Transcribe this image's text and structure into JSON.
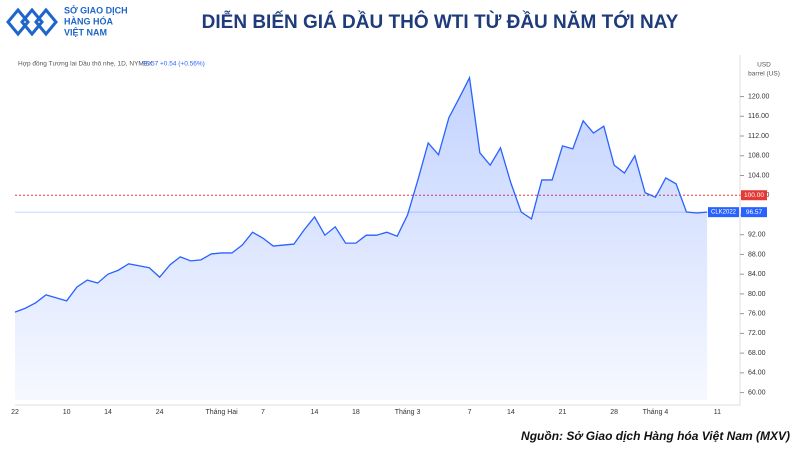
{
  "logo": {
    "lines": [
      "SỞ GIAO DỊCH",
      "HÀNG HÓA",
      "VIỆT NAM"
    ]
  },
  "chart_data": {
    "type": "line",
    "title": "DIỄN BIẾN GIÁ DẦU THÔ WTI TỪ ĐẦU NĂM TỚI NAY",
    "subtitle": "Hợp đồng Tương lai Dầu thô nhẹ, 1D, NYMEX",
    "quote_change": "+0.54 (+0.56%)",
    "unit": [
      "USD",
      "barrel (US)"
    ],
    "symbol": "CLK2022",
    "source": "Nguồn: Sở Giao dịch Hàng hóa Việt Nam (MXV)",
    "categories": [
      "22",
      null,
      null,
      null,
      null,
      "10",
      null,
      null,
      null,
      "14",
      null,
      null,
      null,
      null,
      "24",
      null,
      null,
      null,
      null,
      null,
      "Tháng Hai",
      null,
      null,
      null,
      "7",
      null,
      null,
      null,
      null,
      "14",
      null,
      null,
      null,
      "18",
      null,
      null,
      null,
      null,
      "Tháng 3",
      null,
      null,
      null,
      null,
      null,
      "7",
      null,
      null,
      null,
      "14",
      null,
      null,
      null,
      null,
      "21",
      null,
      null,
      null,
      null,
      "28",
      null,
      null,
      null,
      "Tháng 4",
      null,
      null,
      null,
      null,
      null,
      "11"
    ],
    "series": [
      {
        "name": "CLK2022",
        "color": "#2962ff",
        "values": [
          76.3,
          77.1,
          78.2,
          79.8,
          79.2,
          78.6,
          81.4,
          82.8,
          82.2,
          84.0,
          84.8,
          86.1,
          85.7,
          85.3,
          83.4,
          85.9,
          87.5,
          86.7,
          86.9,
          88.1,
          88.3,
          88.3,
          89.9,
          92.5,
          91.3,
          89.7,
          89.9,
          90.1,
          93.0,
          95.6,
          91.9,
          93.6,
          90.3,
          90.3,
          91.9,
          91.9,
          92.5,
          91.7,
          96.0,
          103.1,
          110.6,
          108.2,
          115.7,
          119.7,
          123.8,
          108.6,
          106.1,
          109.6,
          102.5,
          96.6,
          95.2,
          103.1,
          103.1,
          110.0,
          109.4,
          115.1,
          112.6,
          114.0,
          106.1,
          104.5,
          108.0,
          100.5,
          99.6,
          103.5,
          102.3,
          96.6,
          96.4,
          96.57,
          null
        ]
      }
    ],
    "ref_line": {
      "value": 100,
      "label": "100.00",
      "color": "#e53935"
    },
    "ylim": [
      58.5,
      127
    ],
    "yticks": [
      {
        "value": 60,
        "label": "60.00"
      },
      {
        "value": 64,
        "label": "64.00"
      },
      {
        "value": 68,
        "label": "68.00"
      },
      {
        "value": 72,
        "label": "72.00"
      },
      {
        "value": 76,
        "label": "76.00"
      },
      {
        "value": 80,
        "label": "80.00"
      },
      {
        "value": 84,
        "label": "84.00"
      },
      {
        "value": 88,
        "label": "88.00"
      },
      {
        "value": 92,
        "label": "92.00"
      },
      {
        "value": 96,
        "label": "96.00"
      },
      {
        "value": 100,
        "label": "100.00"
      },
      {
        "value": 104,
        "label": "104.00"
      },
      {
        "value": 108,
        "label": "108.00"
      },
      {
        "value": 112,
        "label": "112.00"
      },
      {
        "value": 116,
        "label": "116.00"
      },
      {
        "value": 120,
        "label": "120.00"
      }
    ],
    "grid": false
  }
}
